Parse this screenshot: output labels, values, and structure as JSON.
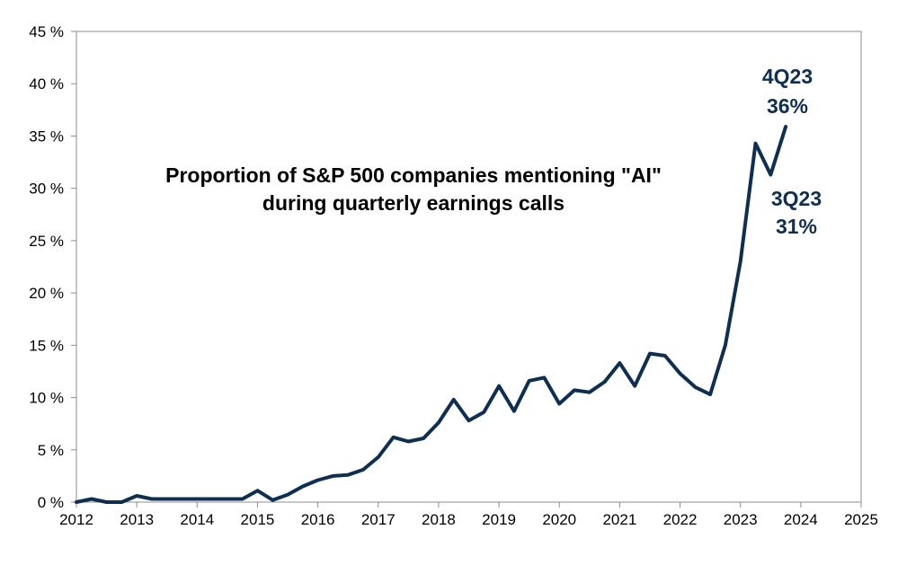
{
  "chart_data": {
    "type": "line",
    "title_lines": [
      "Proportion of S&P 500 companies mentioning \"AI\"",
      "during quarterly earnings calls"
    ],
    "xlabel": "",
    "ylabel": "",
    "xlim": [
      2012,
      2025
    ],
    "ylim": [
      0,
      45
    ],
    "x_ticks": [
      2012,
      2013,
      2014,
      2015,
      2016,
      2017,
      2018,
      2019,
      2020,
      2021,
      2022,
      2023,
      2024,
      2025
    ],
    "x_tick_labels": [
      "2012",
      "2013",
      "2014",
      "2015",
      "2016",
      "2017",
      "2018",
      "2019",
      "2020",
      "2021",
      "2022",
      "2023",
      "2024",
      "2025"
    ],
    "y_ticks": [
      0,
      5,
      10,
      15,
      20,
      25,
      30,
      35,
      40,
      45
    ],
    "y_tick_labels": [
      "0 %",
      "5 %",
      "10 %",
      "15 %",
      "20 %",
      "25 %",
      "30 %",
      "35 %",
      "40 %",
      "45 %"
    ],
    "grid": false,
    "legend": "none",
    "series": [
      {
        "name": "Proportion of S&P 500 companies mentioning \"AI\"",
        "color": "#0f2f52",
        "x": [
          2012.0,
          2012.25,
          2012.5,
          2012.75,
          2013.0,
          2013.25,
          2013.5,
          2013.75,
          2014.0,
          2014.25,
          2014.5,
          2014.75,
          2015.0,
          2015.25,
          2015.5,
          2015.75,
          2016.0,
          2016.25,
          2016.5,
          2016.75,
          2017.0,
          2017.25,
          2017.5,
          2017.75,
          2018.0,
          2018.25,
          2018.5,
          2018.75,
          2019.0,
          2019.25,
          2019.5,
          2019.75,
          2020.0,
          2020.25,
          2020.5,
          2020.75,
          2021.0,
          2021.25,
          2021.5,
          2021.75,
          2022.0,
          2022.25,
          2022.5,
          2022.75,
          2023.0,
          2023.25,
          2023.5,
          2023.75
        ],
        "values": [
          0.0,
          0.3,
          0.0,
          0.0,
          0.6,
          0.3,
          0.3,
          0.3,
          0.3,
          0.3,
          0.3,
          0.3,
          1.1,
          0.2,
          0.7,
          1.5,
          2.1,
          2.5,
          2.6,
          3.1,
          4.3,
          6.2,
          5.8,
          6.1,
          7.6,
          9.8,
          7.8,
          8.6,
          11.1,
          8.7,
          11.6,
          11.9,
          9.4,
          10.7,
          10.5,
          11.5,
          13.3,
          11.1,
          14.2,
          14.0,
          12.3,
          11.0,
          10.3,
          15.0,
          23.0,
          34.3,
          31.3,
          35.9
        ]
      }
    ],
    "annotations": [
      {
        "label": "4Q23",
        "value_label": "36%",
        "x": 2023.75,
        "y": 35.9
      },
      {
        "label": "3Q23",
        "value_label": "31%",
        "x": 2023.5,
        "y": 31.3
      }
    ]
  }
}
